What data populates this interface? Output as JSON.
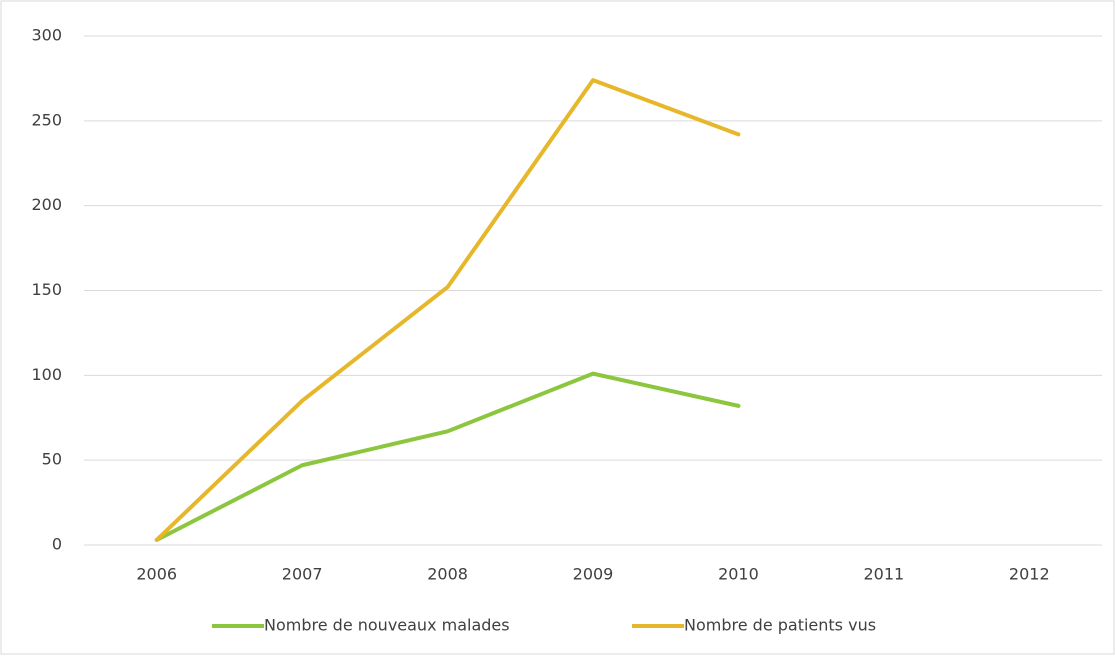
{
  "chart_data": {
    "type": "line",
    "categories": [
      "2006",
      "2007",
      "2008",
      "2009",
      "2010",
      "2011",
      "2012"
    ],
    "series": [
      {
        "name": "Nombre de nouveaux malades",
        "color": "#8cc63f",
        "values": [
          3,
          47,
          67,
          101,
          82,
          null,
          null
        ]
      },
      {
        "name": "Nombre de patients vus",
        "color": "#e6b72a",
        "values": [
          3,
          85,
          152,
          274,
          242,
          null,
          null
        ]
      }
    ],
    "ylim": [
      0,
      300
    ],
    "yticks": [
      0,
      50,
      100,
      150,
      200,
      250,
      300
    ],
    "grid": true,
    "legend": "bottom"
  }
}
